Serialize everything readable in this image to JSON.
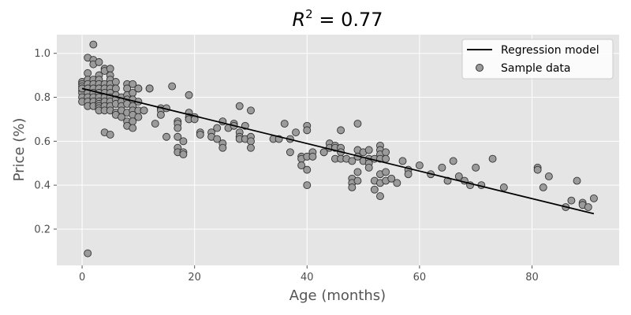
{
  "chart_data": {
    "type": "scatter",
    "title": "R^2 = 0.77",
    "title_parts": {
      "var": "R",
      "sup": "2",
      "rest": " = 0.77"
    },
    "xlabel": "Age (months)",
    "ylabel": "Price (%)",
    "xlim": [
      -4.5,
      95.5
    ],
    "ylim": [
      0.035,
      1.085
    ],
    "xticks": [
      0,
      20,
      40,
      60,
      80
    ],
    "yticks": [
      0.2,
      0.4,
      0.6,
      0.8,
      1.0
    ],
    "ytick_labels": [
      "0.2",
      "0.4",
      "0.6",
      "0.8",
      "1.0"
    ],
    "grid": true,
    "legend_position": "top-right",
    "colors": {
      "background": "#e5e5e5",
      "grid": "#ffffff",
      "points": "#9b9b9b",
      "point_edge": "#333333",
      "line": "#000000"
    },
    "series": [
      {
        "name": "Regression model",
        "kind": "line",
        "x": [
          0,
          91
        ],
        "y": [
          0.84,
          0.27
        ]
      },
      {
        "name": "Sample data",
        "kind": "scatter",
        "x": [
          0,
          0,
          0,
          0,
          0,
          0,
          0,
          0,
          1,
          1,
          1,
          1,
          1,
          1,
          1,
          1,
          1,
          1,
          2,
          2,
          2,
          2,
          2,
          2,
          2,
          2,
          2,
          2,
          3,
          3,
          3,
          3,
          3,
          3,
          3,
          3,
          3,
          3,
          3,
          3,
          4,
          4,
          4,
          4,
          4,
          4,
          4,
          4,
          4,
          4,
          5,
          5,
          5,
          5,
          5,
          5,
          5,
          5,
          5,
          5,
          5,
          6,
          6,
          6,
          6,
          6,
          6,
          6,
          7,
          7,
          7,
          7,
          7,
          8,
          8,
          8,
          8,
          8,
          8,
          8,
          8,
          9,
          9,
          9,
          9,
          9,
          9,
          9,
          9,
          10,
          10,
          10,
          10,
          10,
          11,
          11,
          12,
          12,
          13,
          14,
          14,
          14,
          15,
          15,
          16,
          17,
          17,
          17,
          17,
          17,
          17,
          18,
          18,
          18,
          19,
          19,
          19,
          19,
          20,
          20,
          21,
          21,
          23,
          23,
          24,
          24,
          25,
          25,
          25,
          26,
          27,
          27,
          28,
          28,
          28,
          28,
          29,
          29,
          30,
          30,
          30,
          30,
          34,
          35,
          36,
          37,
          37,
          38,
          39,
          39,
          39,
          40,
          40,
          40,
          40,
          40,
          41,
          41,
          43,
          43,
          44,
          44,
          45,
          45,
          45,
          46,
          46,
          46,
          46,
          47,
          48,
          48,
          48,
          48,
          49,
          49,
          49,
          49,
          49,
          50,
          50,
          51,
          51,
          51,
          51,
          52,
          52,
          52,
          53,
          53,
          53,
          53,
          53,
          53,
          53,
          54,
          54,
          54,
          54,
          55,
          56,
          57,
          58,
          58,
          60,
          62,
          64,
          65,
          66,
          67,
          68,
          69,
          70,
          71,
          73,
          75,
          81,
          81,
          82,
          83,
          86,
          87,
          88,
          89,
          89,
          90,
          91
        ],
        "y": [
          0.87,
          0.86,
          0.85,
          0.83,
          0.82,
          0.8,
          0.78,
          0.84,
          0.98,
          0.91,
          0.88,
          0.86,
          0.84,
          0.82,
          0.8,
          0.78,
          0.76,
          0.09,
          1.04,
          0.97,
          0.95,
          0.88,
          0.86,
          0.84,
          0.82,
          0.8,
          0.78,
          0.76,
          0.96,
          0.9,
          0.88,
          0.86,
          0.84,
          0.82,
          0.8,
          0.78,
          0.77,
          0.76,
          0.75,
          0.74,
          0.93,
          0.92,
          0.86,
          0.84,
          0.82,
          0.8,
          0.78,
          0.76,
          0.74,
          0.64,
          0.93,
          0.9,
          0.88,
          0.86,
          0.84,
          0.82,
          0.8,
          0.78,
          0.76,
          0.74,
          0.63,
          0.87,
          0.84,
          0.81,
          0.79,
          0.77,
          0.73,
          0.72,
          0.8,
          0.78,
          0.76,
          0.74,
          0.71,
          0.86,
          0.84,
          0.81,
          0.79,
          0.77,
          0.73,
          0.69,
          0.67,
          0.86,
          0.82,
          0.79,
          0.76,
          0.74,
          0.72,
          0.69,
          0.66,
          0.84,
          0.84,
          0.78,
          0.74,
          0.71,
          0.74,
          0.74,
          0.84,
          0.84,
          0.68,
          0.75,
          0.74,
          0.72,
          0.75,
          0.62,
          0.85,
          0.69,
          0.68,
          0.66,
          0.62,
          0.57,
          0.55,
          0.6,
          0.55,
          0.54,
          0.81,
          0.73,
          0.71,
          0.7,
          0.71,
          0.7,
          0.64,
          0.63,
          0.64,
          0.62,
          0.66,
          0.61,
          0.69,
          0.59,
          0.57,
          0.66,
          0.68,
          0.67,
          0.76,
          0.64,
          0.62,
          0.61,
          0.67,
          0.61,
          0.74,
          0.62,
          0.6,
          0.57,
          0.61,
          0.61,
          0.68,
          0.61,
          0.55,
          0.64,
          0.53,
          0.52,
          0.49,
          0.67,
          0.65,
          0.53,
          0.47,
          0.4,
          0.55,
          0.53,
          0.55,
          0.55,
          0.59,
          0.57,
          0.58,
          0.57,
          0.52,
          0.65,
          0.57,
          0.55,
          0.52,
          0.52,
          0.51,
          0.43,
          0.41,
          0.39,
          0.68,
          0.56,
          0.53,
          0.46,
          0.42,
          0.55,
          0.51,
          0.56,
          0.52,
          0.5,
          0.48,
          0.52,
          0.42,
          0.38,
          0.58,
          0.56,
          0.54,
          0.52,
          0.45,
          0.41,
          0.35,
          0.55,
          0.52,
          0.46,
          0.42,
          0.43,
          0.41,
          0.51,
          0.47,
          0.45,
          0.49,
          0.45,
          0.48,
          0.42,
          0.51,
          0.44,
          0.42,
          0.4,
          0.48,
          0.4,
          0.52,
          0.39,
          0.48,
          0.47,
          0.39,
          0.44,
          0.3,
          0.33,
          0.42,
          0.32,
          0.31,
          0.3,
          0.34
        ]
      }
    ]
  }
}
